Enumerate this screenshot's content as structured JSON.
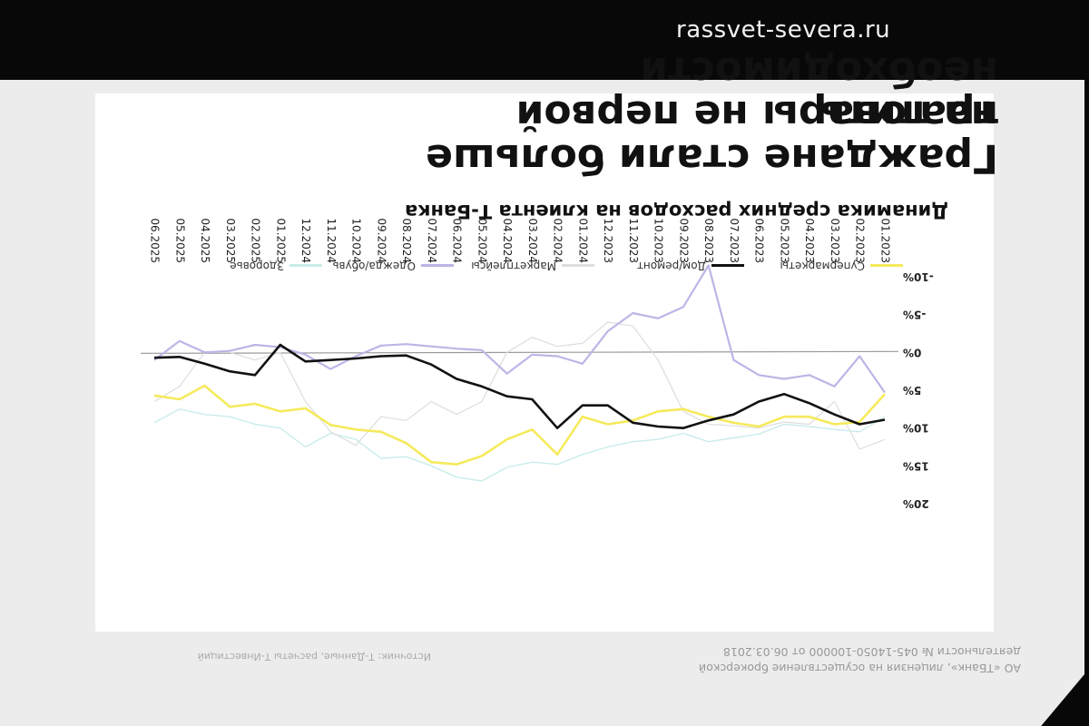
{
  "watermark": "rassvet-severa.ru",
  "slide": {
    "title_line1": "Граждане стали больше тратить",
    "title_line2": "на товары не первой",
    "title_line3": "необходимости",
    "footer_left": "АО «ТБанк», лицензия на осуществление брокерской деятельности № 045-14050-100000 от 06.03.2018",
    "footer_right": "Источник: Т-Данные, расчеты Т-Инвестиций"
  },
  "colors": {
    "supermarkets": "#f5ea5c",
    "home": "#111111",
    "marketplaces": "#dddddd",
    "clothing": "#bcb5e6",
    "health": "#c9ecec",
    "zero_line": "#999999"
  },
  "chart_data": {
    "type": "line",
    "title": "Динамика средних расходов на клиента Т-Банка",
    "x": [
      "01.2023",
      "02.2023",
      "03.2023",
      "04.2023",
      "05.2023",
      "06.2023",
      "07.2023",
      "08.2023",
      "09.2023",
      "10.2023",
      "11.2023",
      "12.2023",
      "01.2024",
      "02.2024",
      "03.2024",
      "04.2024",
      "05.2024",
      "06.2024",
      "07.2024",
      "08.2024",
      "09.2024",
      "10.2024",
      "11.2024",
      "12.2024",
      "01.2025",
      "02.2025",
      "03.2025",
      "04.2025",
      "05.2025",
      "06.2025"
    ],
    "ylim": [
      -10,
      20
    ],
    "yticks": [
      "-10%",
      "-5%",
      "0%",
      "5%",
      "10%",
      "15%",
      "20%"
    ],
    "ytick_values": [
      -10,
      -5,
      0,
      5,
      10,
      15,
      20
    ],
    "legend_position": "top",
    "grid": false,
    "series": [
      {
        "name": "Супермаркеты",
        "color_key": "supermarkets",
        "values": [
          5.5,
          9.2,
          9.5,
          8.5,
          8.5,
          9.8,
          9.3,
          8.5,
          7.5,
          7.8,
          9.0,
          9.5,
          8.5,
          13.5,
          10.2,
          11.5,
          13.7,
          14.8,
          14.5,
          12.0,
          10.5,
          10.2,
          9.6,
          7.4,
          7.8,
          6.8,
          7.2,
          4.4,
          6.2,
          5.7
        ]
      },
      {
        "name": "Дом/ремонт",
        "color_key": "home",
        "values": [
          8.9,
          9.5,
          8.2,
          6.7,
          5.5,
          6.5,
          8.2,
          9.0,
          10.0,
          9.8,
          9.3,
          7.0,
          7.0,
          10.0,
          6.2,
          5.8,
          4.5,
          3.5,
          1.6,
          0.4,
          0.5,
          0.8,
          1.0,
          1.2,
          -1.0,
          3.0,
          2.5,
          1.5,
          0.6,
          0.7
        ]
      },
      {
        "name": "Маркетплейсы",
        "color_key": "marketplaces",
        "values": [
          11.5,
          12.8,
          6.5,
          9.5,
          9.2,
          10.0,
          9.7,
          9.5,
          7.8,
          1.0,
          -3.5,
          -4.0,
          -1.2,
          -0.8,
          -2.0,
          0.0,
          6.5,
          8.2,
          6.5,
          9.0,
          8.5,
          12.3,
          10.5,
          6.5,
          0.0,
          1.0,
          0.0,
          0.0,
          4.5,
          6.5
        ]
      },
      {
        "name": "Одежда/обувь",
        "color_key": "clothing",
        "values": [
          5.3,
          0.5,
          4.5,
          3.0,
          3.5,
          3.0,
          1.0,
          -11.5,
          -6.0,
          -4.5,
          -5.2,
          -2.8,
          1.5,
          0.5,
          0.3,
          2.8,
          -0.3,
          -0.5,
          -0.8,
          -1.1,
          -0.9,
          0.5,
          2.2,
          0.3,
          -0.7,
          -1.0,
          -0.2,
          0.0,
          -1.5,
          1.0
        ]
      },
      {
        "name": "Здоровье",
        "color_key": "health",
        "values": [
          8.5,
          10.5,
          10.2,
          9.8,
          9.5,
          10.8,
          11.3,
          11.8,
          10.7,
          11.5,
          11.8,
          12.5,
          13.5,
          14.8,
          14.5,
          15.2,
          17.0,
          16.5,
          15.0,
          13.8,
          14.0,
          11.5,
          10.7,
          12.5,
          10.0,
          9.5,
          8.5,
          8.2,
          7.5,
          9.3
        ]
      }
    ]
  }
}
